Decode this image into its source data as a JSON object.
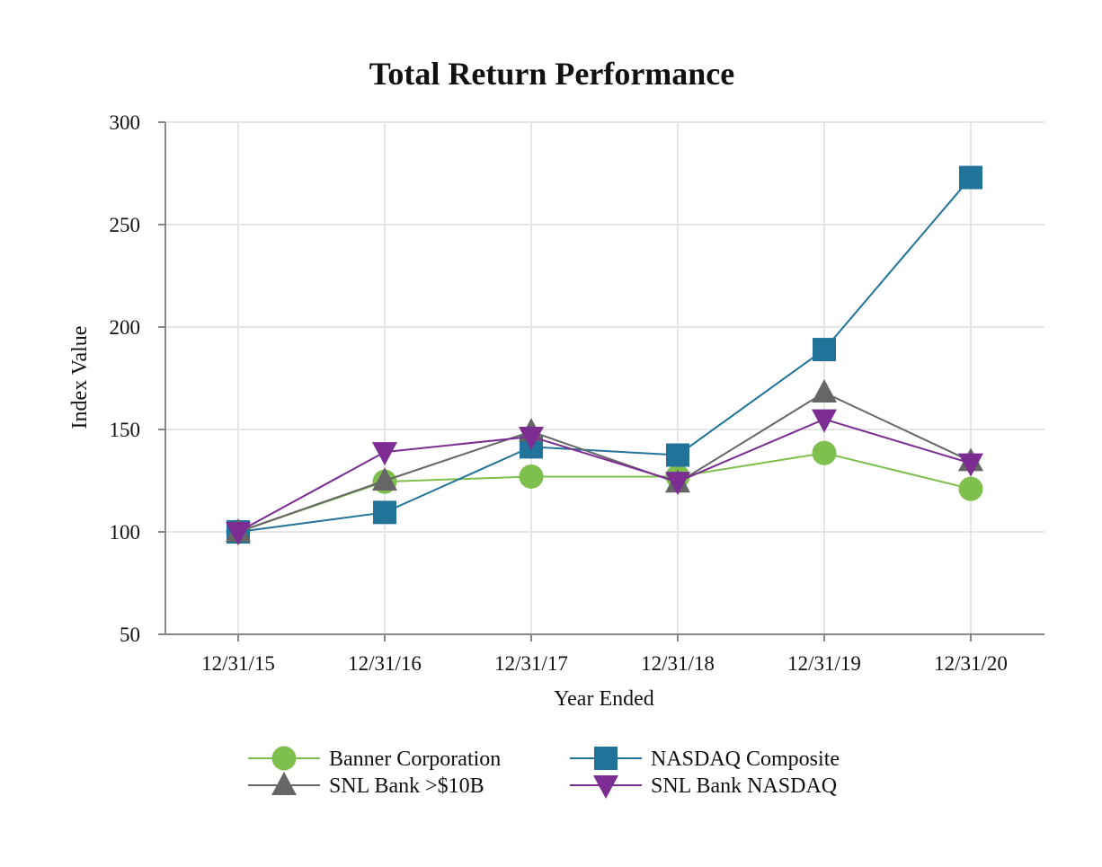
{
  "chart_data": {
    "type": "line",
    "title": "Total Return Performance",
    "xlabel": "Year Ended",
    "ylabel": "Index Value",
    "categories": [
      "12/31/15",
      "12/31/16",
      "12/31/17",
      "12/31/18",
      "12/31/19",
      "12/31/20"
    ],
    "ylim": [
      50,
      300
    ],
    "yticks": [
      50,
      100,
      150,
      200,
      250,
      300
    ],
    "grid": true,
    "legend_position": "bottom",
    "series": [
      {
        "name": "Banner Corporation",
        "values": [
          100,
          124.5,
          127,
          127,
          138.5,
          121
        ],
        "color": "#7fbf4d",
        "marker": "circle"
      },
      {
        "name": "NASDAQ Composite",
        "values": [
          100,
          109.5,
          141.5,
          137.5,
          189,
          273
        ],
        "color": "#21739a",
        "marker": "square"
      },
      {
        "name": "SNL Bank >$10B",
        "values": [
          100,
          125,
          149,
          124,
          168,
          134.5
        ],
        "color": "#666666",
        "marker": "triangle-up"
      },
      {
        "name": "SNL Bank NASDAQ",
        "values": [
          100,
          139,
          146.5,
          124.5,
          155,
          133.5
        ],
        "color": "#7b2d92",
        "marker": "triangle-down"
      }
    ]
  }
}
